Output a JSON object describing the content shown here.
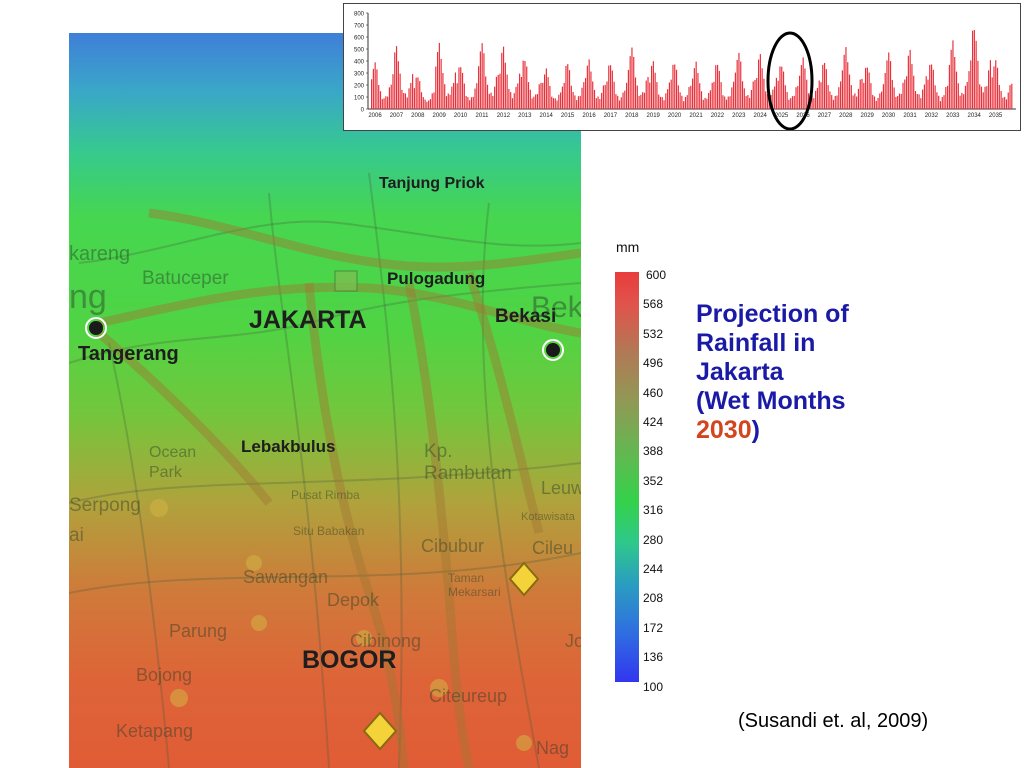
{
  "title": {
    "line1": "Projection of",
    "line2": "Rainfall in",
    "line3": "Jakarta",
    "line4_prefix": "(Wet Months",
    "year": "2030",
    "close": ")"
  },
  "citation": "(Susandi et. al, 2009)",
  "map_labels": {
    "tanjung_priok": "Tanjung Priok",
    "pulogadung": "Pulogadung",
    "jakarta": "JAKARTA",
    "bekasi": "Bekasi",
    "tangerang": "Tangerang",
    "lebakbulus": "Lebakbulus",
    "bogor": "BOGOR",
    "batuceper": "Batuceper",
    "kp_rambutan": "Kp. Rambutan",
    "serpong": "Serpong",
    "sawangan": "Sawangan",
    "depok": "Depok",
    "cibubur": "Cibubur",
    "parung": "Parung",
    "cibinong": "Cibinong",
    "bojong": "Bojong",
    "citeureup": "Citeureup",
    "ketapang": "Ketapang",
    "ocean_park": "Ocean Park",
    "kareng": "kareng",
    "ng": "ng",
    "bek": "Bek",
    "leuw": "Leuw",
    "cileu": "Cileu",
    "situ": "Situ Babakan",
    "taman": "Taman Mekarsari",
    "kotawisata": "Kotawisata",
    "pusat": "Pusat Rimba",
    "nag": "Nag",
    "jo": "Jo",
    "ai": "ai"
  },
  "colorbar": {
    "unit": "mm",
    "ticks": [
      "600",
      "568",
      "532",
      "496",
      "460",
      "424",
      "388",
      "352",
      "316",
      "280",
      "244",
      "208",
      "172",
      "136",
      "100"
    ]
  },
  "chart_data": [
    {
      "type": "bar",
      "title": "",
      "xlabel": "",
      "ylabel": "",
      "ylim": [
        0,
        800
      ],
      "yticks": [
        0,
        100,
        200,
        300,
        400,
        500,
        600,
        700,
        800
      ],
      "xticks": [
        "2006",
        "2007",
        "2008",
        "2009",
        "2010",
        "2011",
        "2012",
        "2013",
        "2014",
        "2015",
        "2016",
        "2017",
        "2018",
        "2019",
        "2020",
        "2021",
        "2022",
        "2023",
        "2024",
        "2025",
        "2026",
        "2027",
        "2028",
        "2029",
        "2030",
        "2031",
        "2032",
        "2033",
        "2034",
        "2035"
      ],
      "bar_color": "#e8303a",
      "annotation": "circle around 2025-2026 wet season",
      "annual_peaks_mm": [
        380,
        500,
        270,
        530,
        360,
        540,
        500,
        420,
        330,
        380,
        400,
        380,
        500,
        380,
        380,
        380,
        380,
        460,
        440,
        370,
        420,
        390,
        500,
        360,
        460,
        470,
        380,
        550,
        680,
        400
      ]
    },
    {
      "type": "heatmap",
      "colorbar": {
        "unit": "mm",
        "min": 100,
        "max": 600,
        "high_color": "#e83c3c",
        "low_color": "#3236f0"
      },
      "region": "Jakarta",
      "gradient": "rainfall increases from north (~300 mm) to south (~600 mm)"
    }
  ]
}
